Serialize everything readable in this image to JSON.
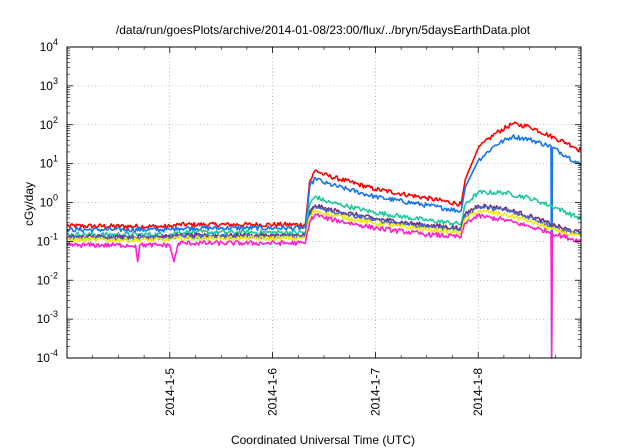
{
  "chart_data": {
    "type": "line",
    "title": "/data/run/goesPlots/archive/2014-01-08/23:00/flux/../bryn/5daysEarthData.plot",
    "xlabel": "Coordinated Universal Time (UTC)",
    "ylabel": "cGy/day",
    "y_scale": "log",
    "ylim": [
      0.0001,
      10000
    ],
    "xlim": [
      "2014-01-04",
      "2014-01-09"
    ],
    "grid": true,
    "grid_style": "dotted",
    "legend": "none",
    "x_ticks": [
      {
        "x": "2014-01-05",
        "label": "2014-1-5"
      },
      {
        "x": "2014-01-06",
        "label": "2014-1-6"
      },
      {
        "x": "2014-01-07",
        "label": "2014-1-7"
      },
      {
        "x": "2014-01-08",
        "label": "2014-1-8"
      }
    ],
    "y_ticks": [
      {
        "value": 0.0001,
        "base": "10",
        "exp": "-4"
      },
      {
        "value": 0.001,
        "base": "10",
        "exp": "-3"
      },
      {
        "value": 0.01,
        "base": "10",
        "exp": "-2"
      },
      {
        "value": 0.1,
        "base": "10",
        "exp": "-1"
      },
      {
        "value": 1,
        "base": "10",
        "exp": "0"
      },
      {
        "value": 10,
        "base": "10",
        "exp": "1"
      },
      {
        "value": 100,
        "base": "10",
        "exp": "2"
      },
      {
        "value": 1000,
        "base": "10",
        "exp": "3"
      },
      {
        "value": 10000,
        "base": "10",
        "exp": "4"
      }
    ],
    "series": [
      {
        "color": "#ff0000",
        "points": [
          [
            "2014-01-04T00:00",
            0.25
          ],
          [
            "2014-01-05T00:00",
            0.24
          ],
          [
            "2014-01-05T02:00",
            0.27
          ],
          [
            "2014-01-06T07:40",
            0.27
          ],
          [
            "2014-01-06T08:40",
            3.5
          ],
          [
            "2014-01-06T10:00",
            6.8
          ],
          [
            "2014-01-06T12:00",
            5.2
          ],
          [
            "2014-01-07T00:00",
            2.2
          ],
          [
            "2014-01-07T12:00",
            1.3
          ],
          [
            "2014-01-07T20:00",
            0.9
          ],
          [
            "2014-01-07T21:00",
            4.0
          ],
          [
            "2014-01-08T00:00",
            25
          ],
          [
            "2014-01-08T04:00",
            60
          ],
          [
            "2014-01-08T08:00",
            105
          ],
          [
            "2014-01-08T12:00",
            90
          ],
          [
            "2014-01-08T18:00",
            45
          ],
          [
            "2014-01-08T21:00",
            33
          ],
          [
            "2014-01-09T00:00",
            22
          ]
        ]
      },
      {
        "color": "#1a75e8",
        "points": [
          [
            "2014-01-04T00:00",
            0.2
          ],
          [
            "2014-01-05T00:00",
            0.2
          ],
          [
            "2014-01-05T02:00",
            0.22
          ],
          [
            "2014-01-06T07:40",
            0.22
          ],
          [
            "2014-01-06T08:40",
            2.5
          ],
          [
            "2014-01-06T10:00",
            4.3
          ],
          [
            "2014-01-06T12:00",
            3.2
          ],
          [
            "2014-01-07T00:00",
            1.4
          ],
          [
            "2014-01-07T12:00",
            0.85
          ],
          [
            "2014-01-07T20:00",
            0.6
          ],
          [
            "2014-01-07T21:00",
            2.5
          ],
          [
            "2014-01-08T00:00",
            12
          ],
          [
            "2014-01-08T04:00",
            30
          ],
          [
            "2014-01-08T08:00",
            50
          ],
          [
            "2014-01-08T12:00",
            42
          ],
          [
            "2014-01-08T16:00",
            30
          ],
          [
            "2014-01-08T17:00",
            28
          ],
          [
            "2014-01-08T17:10",
            0.0001
          ],
          [
            "2014-01-08T17:20",
            26
          ],
          [
            "2014-01-08T21:00",
            15
          ],
          [
            "2014-01-09T00:00",
            9
          ]
        ]
      },
      {
        "color": "#1fc8a0",
        "points": [
          [
            "2014-01-04T00:00",
            0.15
          ],
          [
            "2014-01-05T00:00",
            0.15
          ],
          [
            "2014-01-05T02:00",
            0.17
          ],
          [
            "2014-01-06T07:40",
            0.17
          ],
          [
            "2014-01-06T08:40",
            0.9
          ],
          [
            "2014-01-06T10:00",
            1.45
          ],
          [
            "2014-01-06T12:00",
            1.1
          ],
          [
            "2014-01-07T00:00",
            0.55
          ],
          [
            "2014-01-07T12:00",
            0.35
          ],
          [
            "2014-01-07T20:00",
            0.28
          ],
          [
            "2014-01-07T21:00",
            0.9
          ],
          [
            "2014-01-08T00:00",
            1.8
          ],
          [
            "2014-01-08T06:00",
            1.8
          ],
          [
            "2014-01-08T12:00",
            1.3
          ],
          [
            "2014-01-08T18:00",
            0.75
          ],
          [
            "2014-01-09T00:00",
            0.38
          ]
        ]
      },
      {
        "color": "#7a2a7a",
        "points": [
          [
            "2014-01-04T00:00",
            0.13
          ],
          [
            "2014-01-05T00:00",
            0.13
          ],
          [
            "2014-01-05T02:00",
            0.14
          ],
          [
            "2014-01-06T07:40",
            0.14
          ],
          [
            "2014-01-06T08:40",
            0.55
          ],
          [
            "2014-01-06T10:00",
            0.85
          ],
          [
            "2014-01-06T12:00",
            0.7
          ],
          [
            "2014-01-07T00:00",
            0.38
          ],
          [
            "2014-01-07T12:00",
            0.26
          ],
          [
            "2014-01-07T20:00",
            0.22
          ],
          [
            "2014-01-07T21:00",
            0.5
          ],
          [
            "2014-01-08T00:00",
            0.85
          ],
          [
            "2014-01-08T06:00",
            0.7
          ],
          [
            "2014-01-08T12:00",
            0.45
          ],
          [
            "2014-01-08T18:00",
            0.25
          ],
          [
            "2014-01-09T00:00",
            0.16
          ]
        ]
      },
      {
        "color": "#4a6bc0",
        "points": [
          [
            "2014-01-04T00:00",
            0.125
          ],
          [
            "2014-01-05T00:00",
            0.125
          ],
          [
            "2014-01-05T02:00",
            0.135
          ],
          [
            "2014-01-06T07:40",
            0.135
          ],
          [
            "2014-01-06T08:40",
            0.5
          ],
          [
            "2014-01-06T10:00",
            0.78
          ],
          [
            "2014-01-06T12:00",
            0.64
          ],
          [
            "2014-01-07T00:00",
            0.35
          ],
          [
            "2014-01-07T12:00",
            0.24
          ],
          [
            "2014-01-07T20:00",
            0.2
          ],
          [
            "2014-01-07T21:00",
            0.46
          ],
          [
            "2014-01-08T00:00",
            0.78
          ],
          [
            "2014-01-08T06:00",
            0.65
          ],
          [
            "2014-01-08T12:00",
            0.42
          ],
          [
            "2014-01-08T18:00",
            0.23
          ],
          [
            "2014-01-09T00:00",
            0.15
          ]
        ]
      },
      {
        "color": "#f0ea10",
        "points": [
          [
            "2014-01-04T00:00",
            0.11
          ],
          [
            "2014-01-05T00:00",
            0.11
          ],
          [
            "2014-01-05T02:00",
            0.12
          ],
          [
            "2014-01-06T07:40",
            0.12
          ],
          [
            "2014-01-06T08:40",
            0.42
          ],
          [
            "2014-01-06T10:00",
            0.65
          ],
          [
            "2014-01-06T12:00",
            0.52
          ],
          [
            "2014-01-07T00:00",
            0.29
          ],
          [
            "2014-01-07T12:00",
            0.2
          ],
          [
            "2014-01-07T20:00",
            0.17
          ],
          [
            "2014-01-07T21:00",
            0.38
          ],
          [
            "2014-01-08T00:00",
            0.6
          ],
          [
            "2014-01-08T06:00",
            0.5
          ],
          [
            "2014-01-08T12:00",
            0.33
          ],
          [
            "2014-01-08T18:00",
            0.19
          ],
          [
            "2014-01-09T00:00",
            0.13
          ]
        ]
      },
      {
        "color": "#ff20d0",
        "points": [
          [
            "2014-01-04T00:00",
            0.08
          ],
          [
            "2014-01-04T16:00",
            0.08
          ],
          [
            "2014-01-04T16:30",
            0.03
          ],
          [
            "2014-01-04T17:00",
            0.08
          ],
          [
            "2014-01-05T00:00",
            0.08
          ],
          [
            "2014-01-05T01:00",
            0.03
          ],
          [
            "2014-01-05T02:00",
            0.09
          ],
          [
            "2014-01-06T07:40",
            0.09
          ],
          [
            "2014-01-06T08:40",
            0.32
          ],
          [
            "2014-01-06T10:00",
            0.5
          ],
          [
            "2014-01-06T12:00",
            0.4
          ],
          [
            "2014-01-07T00:00",
            0.22
          ],
          [
            "2014-01-07T12:00",
            0.15
          ],
          [
            "2014-01-07T20:00",
            0.13
          ],
          [
            "2014-01-07T21:00",
            0.3
          ],
          [
            "2014-01-08T00:00",
            0.45
          ],
          [
            "2014-01-08T06:00",
            0.36
          ],
          [
            "2014-01-08T12:00",
            0.24
          ],
          [
            "2014-01-08T17:00",
            0.17
          ],
          [
            "2014-01-08T17:10",
            0.0001
          ],
          [
            "2014-01-08T17:20",
            0.16
          ],
          [
            "2014-01-09T00:00",
            0.1
          ]
        ]
      }
    ]
  }
}
